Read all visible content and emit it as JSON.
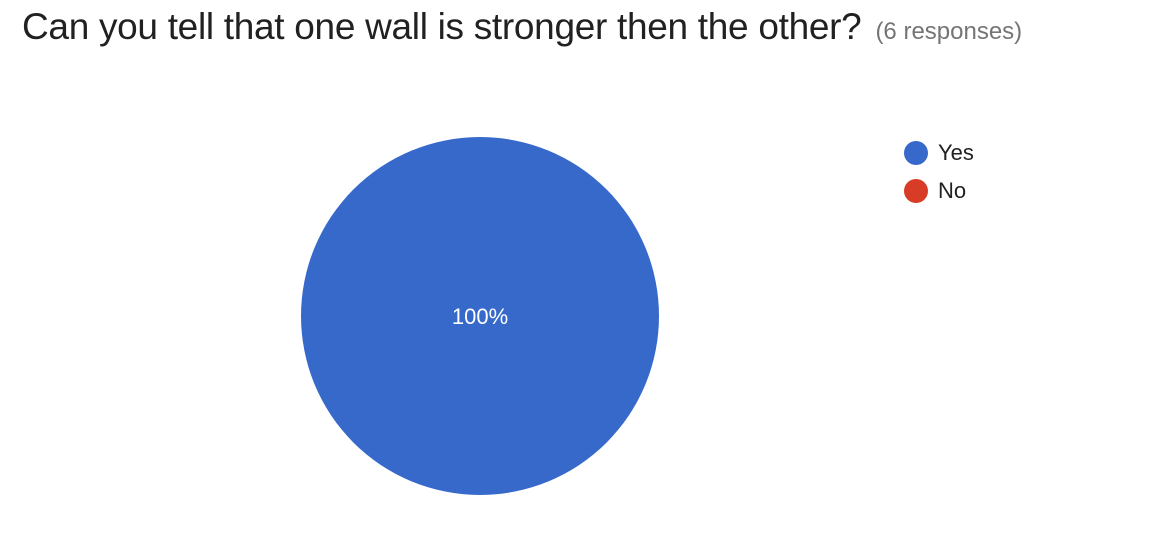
{
  "header": {
    "question": "Can you tell that one wall is stronger then the other?",
    "responses": "(6 responses)"
  },
  "chart_data": {
    "type": "pie",
    "categories": [
      "Yes",
      "No"
    ],
    "values": [
      100,
      0
    ],
    "colors": [
      "#3769CB",
      "#D83B26"
    ],
    "slice_labels": [
      "100%",
      ""
    ],
    "legend_position": "right"
  }
}
